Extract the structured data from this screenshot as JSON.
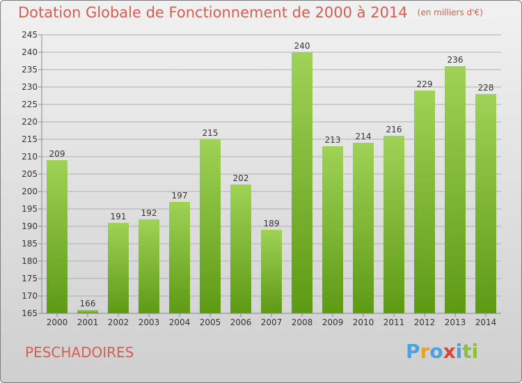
{
  "title": "Dotation Globale de Fonctionnement de 2000 à 2014",
  "subtitle": "(en milliers d'€)",
  "commune": "PESCHADOIRES",
  "logo": {
    "letters": [
      "P",
      "r",
      "o",
      "x",
      "i",
      "t",
      "i"
    ],
    "colors": [
      "#4aa3df",
      "#e9a12b",
      "#4aa3df",
      "#d9443a",
      "#4aa3df",
      "#8cbf3a",
      "#8cbf3a"
    ]
  },
  "colors": {
    "title": "#d35f53",
    "bar_light": "#9fd256",
    "bar_dark": "#5d9a14",
    "grid": "#b0b0b0"
  },
  "chart_data": {
    "type": "bar",
    "categories": [
      "2000",
      "2001",
      "2002",
      "2003",
      "2004",
      "2005",
      "2006",
      "2007",
      "2008",
      "2009",
      "2010",
      "2011",
      "2012",
      "2013",
      "2014"
    ],
    "values": [
      209,
      166,
      191,
      192,
      197,
      215,
      202,
      189,
      240,
      213,
      214,
      216,
      229,
      236,
      228
    ],
    "ylim": [
      165,
      245
    ],
    "yticks": [
      165,
      170,
      175,
      180,
      185,
      190,
      195,
      200,
      205,
      210,
      215,
      220,
      225,
      230,
      235,
      240,
      245
    ],
    "grid": true,
    "data_labels": true
  }
}
